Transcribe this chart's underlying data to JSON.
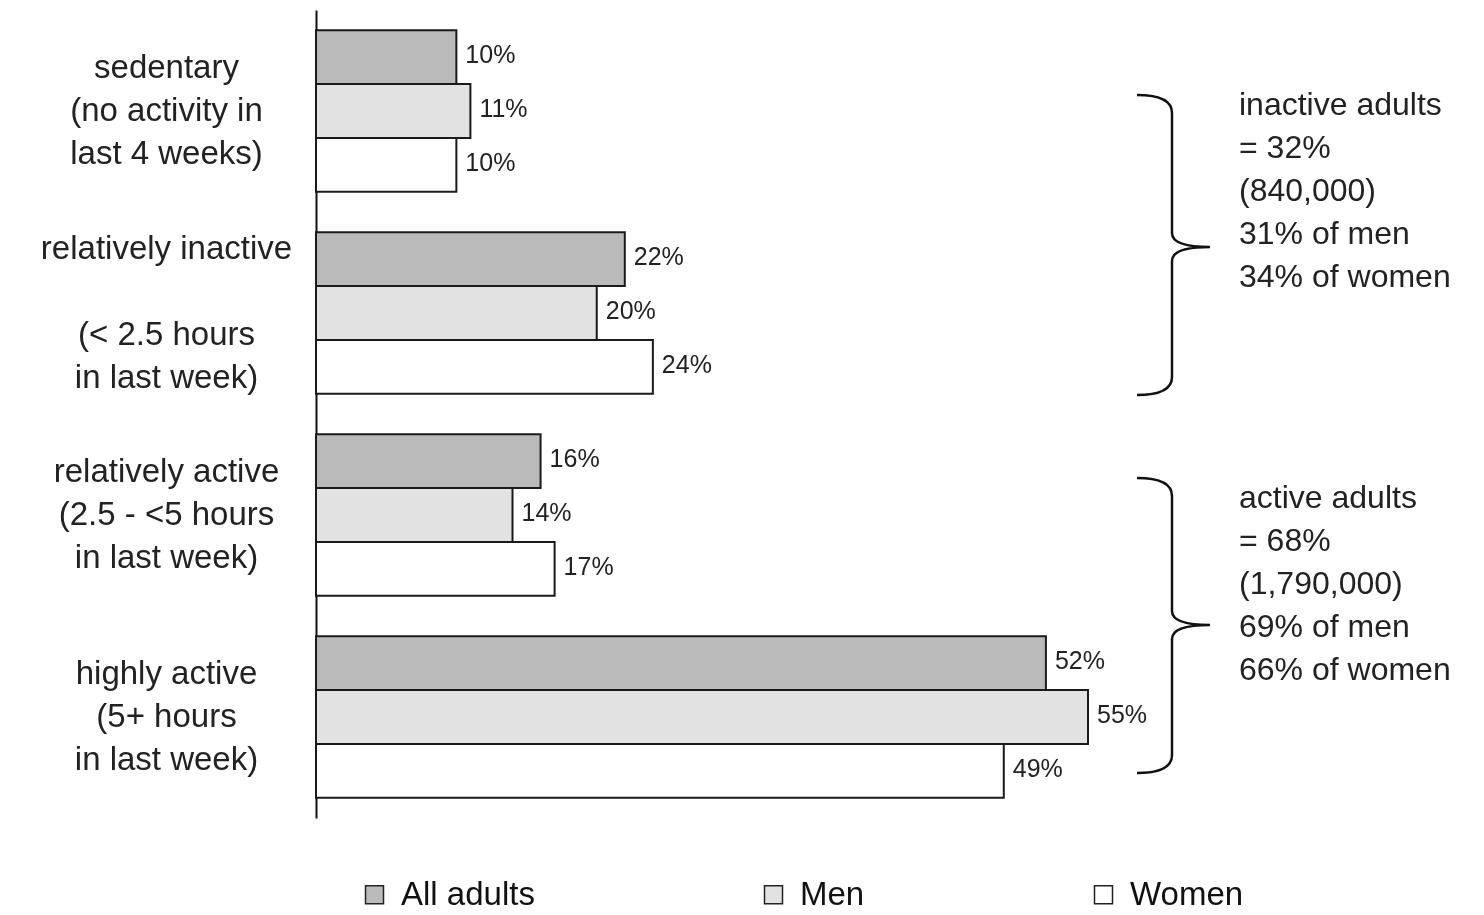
{
  "chart_data": {
    "type": "bar",
    "orientation": "horizontal",
    "categories": [
      "sedentary\n(no activity in\nlast 4 weeks)",
      "relatively inactive\n\n(< 2.5 hours\nin last week)",
      "relatively active\n(2.5 - <5 hours\nin last week)",
      "highly active\n(5+ hours\nin last week)"
    ],
    "series": [
      {
        "name": "All adults",
        "color": "#bababa",
        "values": [
          10,
          22,
          16,
          52
        ],
        "value_labels": [
          "10%",
          "22%",
          "16%",
          "52%"
        ]
      },
      {
        "name": "Men",
        "color": "#e2e2e2",
        "values": [
          11,
          20,
          14,
          55
        ],
        "value_labels": [
          "11%",
          "20%",
          "14%",
          "55%"
        ]
      },
      {
        "name": "Women",
        "color": "#ffffff",
        "values": [
          10,
          24,
          17,
          49
        ],
        "value_labels": [
          "10%",
          "24%",
          "17%",
          "49%"
        ]
      }
    ],
    "annotations": [
      "inactive adults\n= 32%\n(840,000)\n31% of men\n34% of women",
      "active adults\n= 68%\n(1,790,000)\n69% of men\n66% of women"
    ],
    "legend": "bottom",
    "tick_labels": "y"
  }
}
